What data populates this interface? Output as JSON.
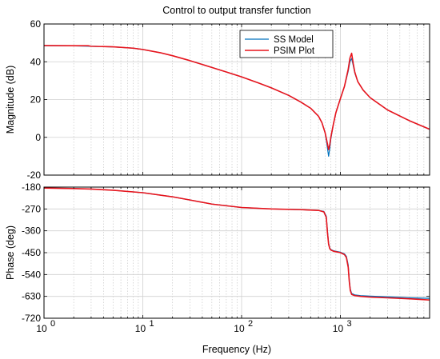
{
  "chart_data": [
    {
      "type": "line",
      "title": "Control to output transfer function",
      "xlabel": "",
      "ylabel": "Magnitude (dB)",
      "xscale": "log",
      "xlim": [
        1,
        8000
      ],
      "ylim": [
        -20,
        60
      ],
      "yticks": [
        "60",
        "40",
        "20",
        "0",
        "-20"
      ],
      "ytick_values": [
        60,
        40,
        20,
        0,
        -20
      ],
      "grid": true,
      "legend_position": "top-right",
      "legend": [
        {
          "name": "SS Model",
          "color": "#0072BD"
        },
        {
          "name": "PSIM Plot",
          "color": "#E8141C"
        }
      ],
      "series": [
        {
          "name": "SS Model",
          "color": "#0072BD",
          "x": [
            1,
            2,
            3,
            5,
            8,
            10,
            15,
            20,
            30,
            50,
            70,
            100,
            150,
            200,
            300,
            400,
            500,
            600,
            650,
            700,
            730,
            760,
            780,
            800,
            850,
            900,
            1000,
            1100,
            1200,
            1250,
            1300,
            1350,
            1400,
            1500,
            1700,
            2000,
            3000,
            5000,
            8000
          ],
          "y": [
            48.5,
            48.4,
            48.2,
            47.9,
            47.2,
            46.5,
            44.8,
            43.2,
            40.6,
            37.0,
            34.6,
            32.0,
            28.7,
            26.2,
            22.2,
            18.6,
            15.4,
            11.2,
            7.8,
            2.5,
            -3.5,
            -10.0,
            -6.0,
            -1.0,
            7.0,
            13.0,
            20.5,
            27.0,
            35.0,
            40.0,
            41.8,
            38.0,
            34.0,
            29.5,
            25.0,
            21.0,
            14.5,
            8.8,
            4.2
          ]
        },
        {
          "name": "PSIM Plot",
          "color": "#E8141C",
          "x": [
            1,
            2,
            2.8,
            3,
            5,
            8,
            10,
            15,
            20,
            30,
            50,
            70,
            100,
            150,
            200,
            300,
            400,
            500,
            600,
            650,
            700,
            730,
            760,
            780,
            800,
            850,
            900,
            1000,
            1100,
            1200,
            1250,
            1300,
            1350,
            1400,
            1500,
            1700,
            2000,
            3000,
            5000,
            8000
          ],
          "y": [
            48.6,
            48.5,
            48.5,
            48.2,
            47.9,
            47.2,
            46.5,
            44.8,
            43.2,
            40.6,
            37.0,
            34.6,
            32.0,
            28.7,
            26.2,
            22.2,
            18.6,
            15.4,
            11.2,
            7.8,
            2.5,
            -2.0,
            -6.5,
            -4.0,
            0.0,
            7.0,
            13.0,
            20.5,
            27.0,
            36.0,
            42.0,
            44.5,
            39.0,
            34.5,
            29.5,
            25.0,
            21.0,
            14.5,
            8.8,
            4.3
          ]
        }
      ]
    },
    {
      "type": "line",
      "title": "",
      "xlabel": "Frequency  (Hz)",
      "ylabel": "Phase (deg)",
      "xscale": "log",
      "xlim": [
        1,
        8000
      ],
      "ylim": [
        -720,
        -180
      ],
      "xticks": [
        "10",
        "10",
        "10",
        "10"
      ],
      "xtick_exponents": [
        "0",
        "1",
        "2",
        "3"
      ],
      "xtick_values": [
        1,
        10,
        100,
        1000
      ],
      "yticks": [
        "-180",
        "-270",
        "-360",
        "-450",
        "-540",
        "-630",
        "-720"
      ],
      "ytick_values": [
        -180,
        -270,
        -360,
        -450,
        -540,
        -630,
        -720
      ],
      "grid": true,
      "series": [
        {
          "name": "SS Model",
          "color": "#0072BD",
          "x": [
            1,
            2,
            3,
            5,
            10,
            20,
            30,
            50,
            100,
            200,
            400,
            600,
            680,
            720,
            740,
            760,
            780,
            800,
            850,
            900,
            1000,
            1100,
            1150,
            1200,
            1230,
            1260,
            1300,
            1400,
            1600,
            2000,
            3000,
            5000,
            8000
          ],
          "y": [
            -184,
            -186,
            -188,
            -193,
            -203,
            -220,
            -233,
            -250,
            -264,
            -270,
            -273,
            -276,
            -280,
            -300,
            -360,
            -410,
            -430,
            -437,
            -442,
            -444,
            -448,
            -455,
            -465,
            -500,
            -560,
            -600,
            -618,
            -624,
            -627,
            -629,
            -632,
            -636,
            -638
          ]
        },
        {
          "name": "PSIM Plot",
          "color": "#E8141C",
          "x": [
            1,
            2,
            3,
            5,
            10,
            20,
            30,
            50,
            100,
            200,
            400,
            600,
            680,
            720,
            740,
            760,
            780,
            800,
            850,
            900,
            1000,
            1100,
            1150,
            1200,
            1230,
            1260,
            1300,
            1400,
            1600,
            2000,
            3000,
            5000,
            8000
          ],
          "y": [
            -184,
            -186,
            -188,
            -193,
            -203,
            -220,
            -233,
            -250,
            -264,
            -270,
            -273,
            -276,
            -282,
            -305,
            -368,
            -415,
            -433,
            -439,
            -444,
            -446,
            -450,
            -458,
            -470,
            -510,
            -568,
            -606,
            -622,
            -627,
            -630,
            -633,
            -636,
            -640,
            -645
          ]
        }
      ]
    }
  ]
}
